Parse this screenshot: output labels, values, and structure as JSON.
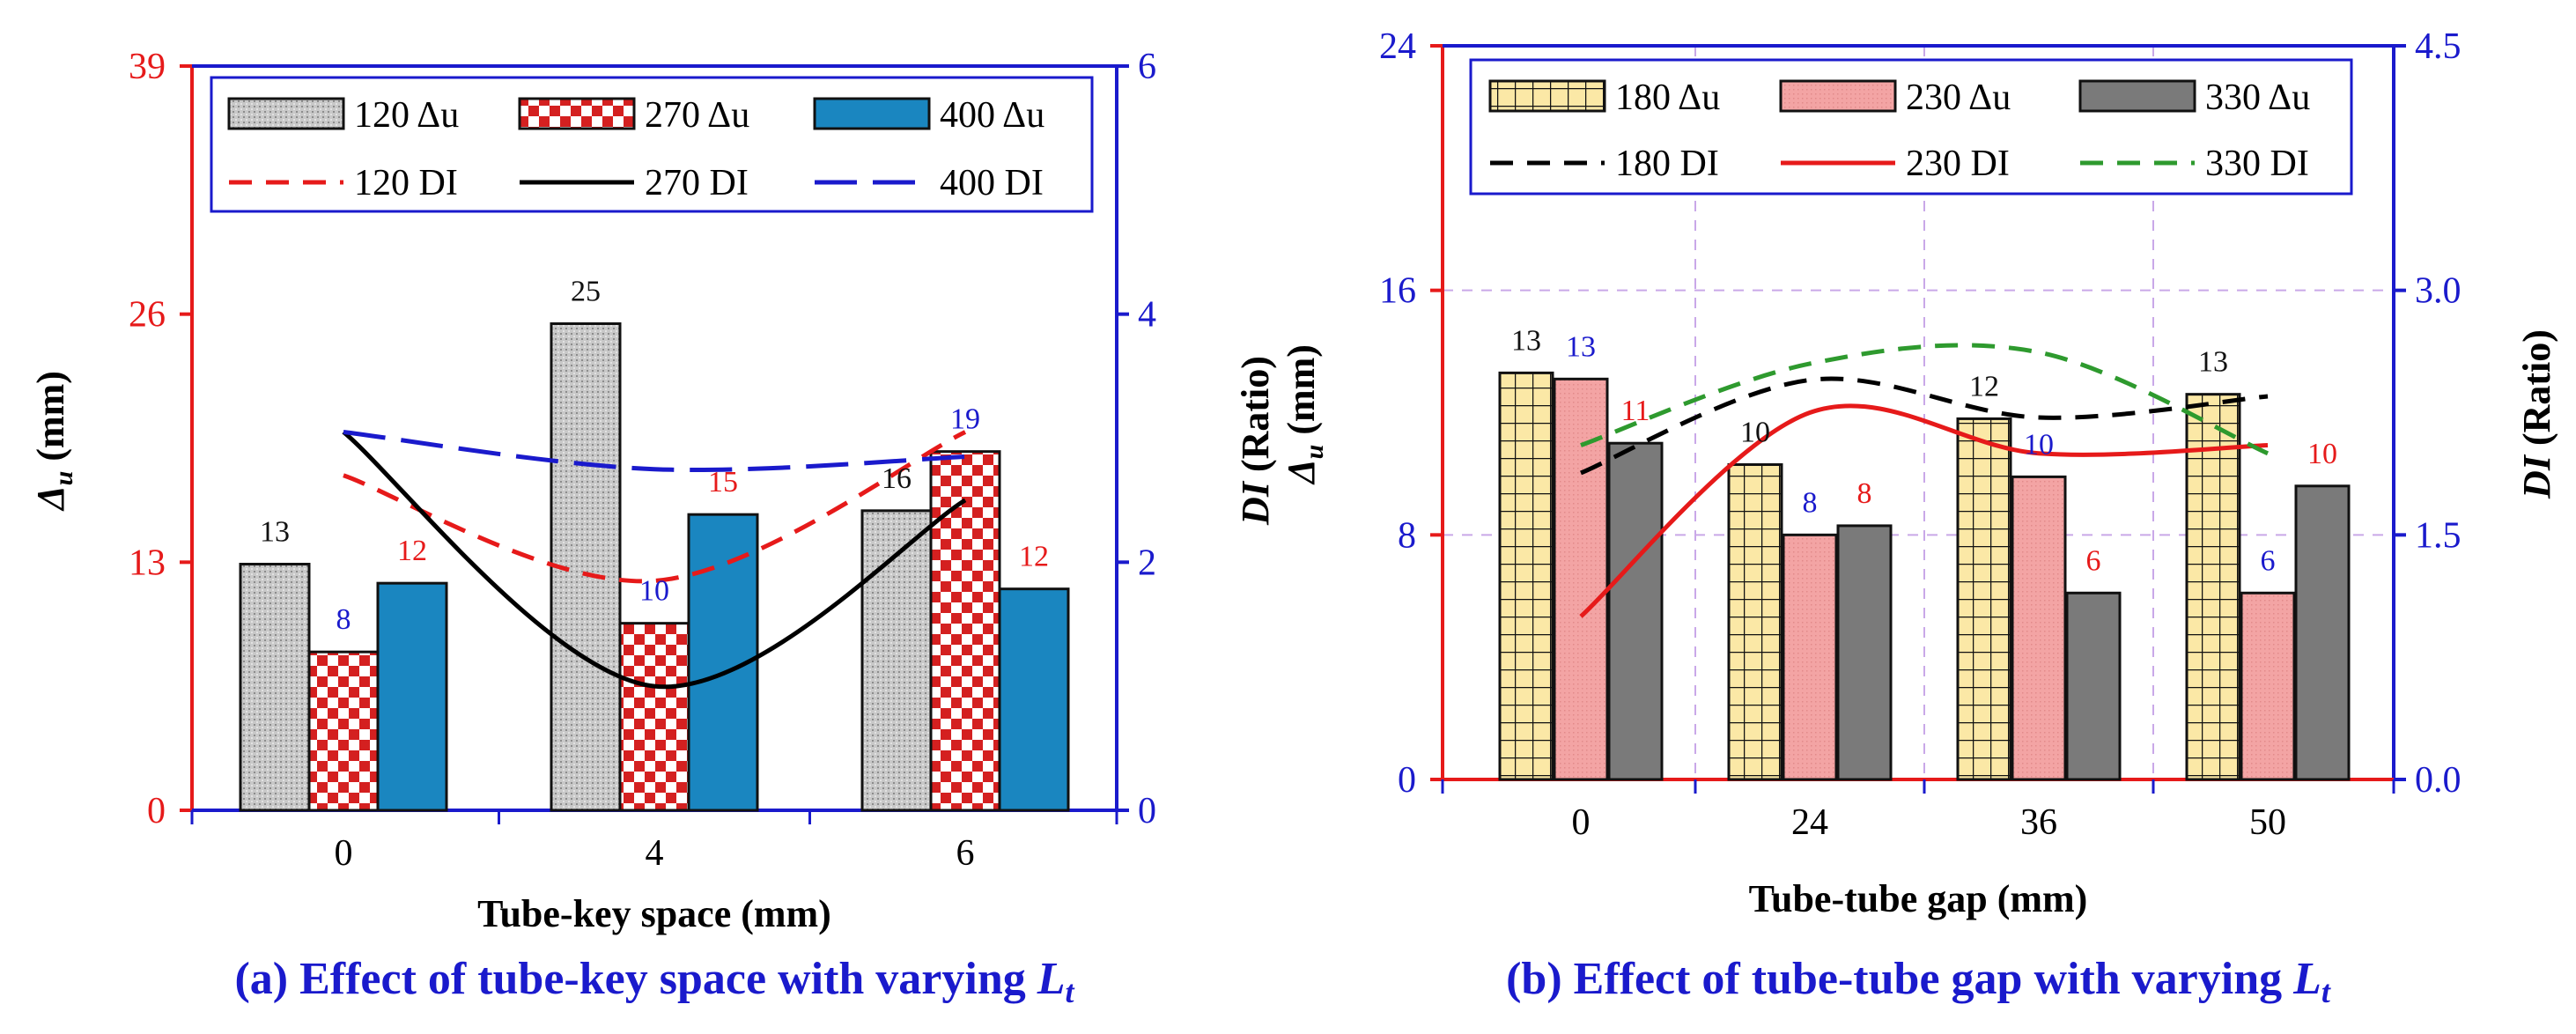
{
  "chart_data": [
    {
      "type": "bar",
      "combo": "bar+line",
      "caption": "(a) Effect of tube-key space with varying ",
      "caption_symbol": "L",
      "caption_subscript": "t",
      "xlabel": "Tube-key space (mm)",
      "ylabel_symbol": "Δ",
      "ylabel_subscript": "u",
      "ylabel_unit": " (mm)",
      "y2label_symbol": "DI",
      "y2label_unit": " (Ratio)",
      "categories": [
        "0",
        "4",
        "6"
      ],
      "ylim": [
        0,
        39
      ],
      "yticks": [
        "0",
        "13",
        "26",
        "39"
      ],
      "y2lim": [
        0,
        6
      ],
      "y2ticks": [
        "0",
        "2",
        "4",
        "6"
      ],
      "grid": false,
      "legend_position": "top",
      "series": [
        {
          "name": "120 Δu",
          "kind": "bar",
          "pattern": "stipple",
          "values": [
            12.9,
            25.5,
            15.7
          ],
          "labels": [
            "13",
            "25",
            "16"
          ],
          "label_color": "#111111"
        },
        {
          "name": "270 Δu",
          "kind": "bar",
          "pattern": "checker",
          "values": [
            8.3,
            9.8,
            18.8
          ],
          "labels": [
            "8",
            "10",
            "19"
          ],
          "label_color": "#1a1acc"
        },
        {
          "name": "400 Δu",
          "kind": "bar",
          "pattern": "solid",
          "color": "#1a86c0",
          "values": [
            11.9,
            15.5,
            11.6
          ],
          "labels": [
            "12",
            "15",
            "12"
          ],
          "label_color": "#e61a1a"
        },
        {
          "name": "120 DI",
          "kind": "line",
          "axis": "y2",
          "color": "#e61a1a",
          "dash": "dash",
          "values": [
            2.7,
            1.85,
            3.05
          ]
        },
        {
          "name": "270 DI",
          "kind": "line",
          "axis": "y2",
          "color": "#000000",
          "dash": "solid",
          "values": [
            3.05,
            1.0,
            2.5
          ]
        },
        {
          "name": "400 DI",
          "kind": "line",
          "axis": "y2",
          "color": "#1a1acc",
          "dash": "longdash",
          "values": [
            3.05,
            2.75,
            2.85
          ]
        }
      ]
    },
    {
      "type": "bar",
      "combo": "bar+line",
      "caption": "(b) Effect of tube-tube gap with varying ",
      "caption_symbol": "L",
      "caption_subscript": "t",
      "xlabel": "Tube-tube gap (mm)",
      "ylabel_symbol": "Δ",
      "ylabel_subscript": "u",
      "ylabel_unit": " (mm)",
      "y2label_symbol": "DI",
      "y2label_unit": " (Ratio)",
      "categories": [
        "0",
        "24",
        "36",
        "50"
      ],
      "ylim": [
        0,
        24
      ],
      "yticks": [
        "0",
        "8",
        "16",
        "24"
      ],
      "y2lim": [
        0,
        4.5
      ],
      "y2ticks": [
        "0.0",
        "1.5",
        "3.0",
        "4.5"
      ],
      "grid": true,
      "legend_position": "top",
      "series": [
        {
          "name": "180 Δu",
          "kind": "bar",
          "pattern": "grid",
          "values": [
            13.3,
            10.3,
            11.8,
            12.6
          ],
          "labels": [
            "13",
            "10",
            "12",
            "13"
          ],
          "label_color": "#111111"
        },
        {
          "name": "230 Δu",
          "kind": "bar",
          "pattern": "pink",
          "values": [
            13.1,
            8.0,
            9.9,
            6.1
          ],
          "labels": [
            "13",
            "8",
            "10",
            "6"
          ],
          "label_color": "#1a1acc"
        },
        {
          "name": "330 Δu",
          "kind": "bar",
          "pattern": "gray",
          "values": [
            11.0,
            8.3,
            6.1,
            9.6
          ],
          "labels": [
            "11",
            "8",
            "6",
            "10"
          ],
          "label_color": "#e61a1a"
        },
        {
          "name": "180 DI",
          "kind": "line",
          "axis": "y2",
          "color": "#000000",
          "dash": "dash",
          "values": [
            1.88,
            2.45,
            2.22,
            2.35
          ]
        },
        {
          "name": "230 DI",
          "kind": "line",
          "axis": "y2",
          "color": "#e61a1a",
          "dash": "solid",
          "values": [
            1.0,
            2.25,
            2.0,
            2.05
          ]
        },
        {
          "name": "330 DI",
          "kind": "line",
          "axis": "y2",
          "color": "#2e9a2e",
          "dash": "dash",
          "values": [
            2.05,
            2.55,
            2.62,
            2.0
          ]
        }
      ]
    }
  ]
}
